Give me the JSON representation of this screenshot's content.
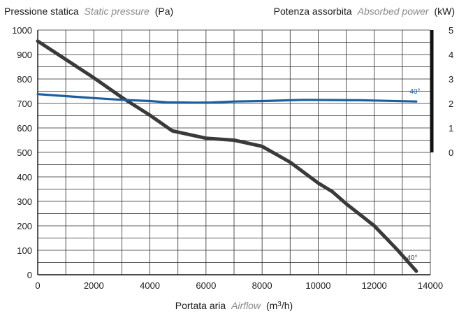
{
  "chart_data": {
    "type": "line",
    "left_axis_title": {
      "main": "Pressione statica",
      "italic": "Static pressure",
      "unit": "(Pa)"
    },
    "right_axis_title": {
      "main": "Potenza assorbita",
      "italic": "Absorbed power",
      "unit": "(kW)"
    },
    "x_axis_title": {
      "main": "Portata aria",
      "italic": "Airflow",
      "unit_prefix": "(m",
      "unit_sup": "3",
      "unit_suffix": "/h)"
    },
    "x_ticks": [
      "0",
      "2000",
      "4000",
      "6000",
      "8000",
      "10000",
      "12000",
      "14000"
    ],
    "y_ticks": [
      "0",
      "100",
      "200",
      "300",
      "400",
      "500",
      "600",
      "700",
      "800",
      "900",
      "1000"
    ],
    "y2_ticks": [
      "0",
      "1",
      "2",
      "3",
      "4",
      "5"
    ],
    "xlim": [
      0,
      14000
    ],
    "ylim": [
      0,
      1000
    ],
    "y2lim": [
      0,
      5
    ],
    "grid": true,
    "series": [
      {
        "label": "40°",
        "axis": "left",
        "color": "#3a3a3a",
        "x": [
          0,
          1000,
          2000,
          3000,
          4000,
          4800,
          6000,
          7000,
          8000,
          9000,
          10000,
          10500,
          11000,
          12000,
          12800,
          13500
        ],
        "y": [
          955,
          880,
          805,
          725,
          652,
          588,
          558,
          550,
          525,
          460,
          375,
          340,
          290,
          200,
          105,
          15
        ]
      },
      {
        "label": "40°",
        "axis": "right",
        "color": "#1c5fa0",
        "x": [
          0,
          1000,
          2000,
          3000,
          4000,
          4600,
          5600,
          6200,
          7000,
          8000,
          9000,
          9500,
          10500,
          11500,
          12000,
          13500
        ],
        "y": [
          2.38,
          2.3,
          2.22,
          2.15,
          2.1,
          2.05,
          2.03,
          2.04,
          2.08,
          2.1,
          2.13,
          2.15,
          2.14,
          2.13,
          2.12,
          2.08
        ]
      }
    ]
  }
}
